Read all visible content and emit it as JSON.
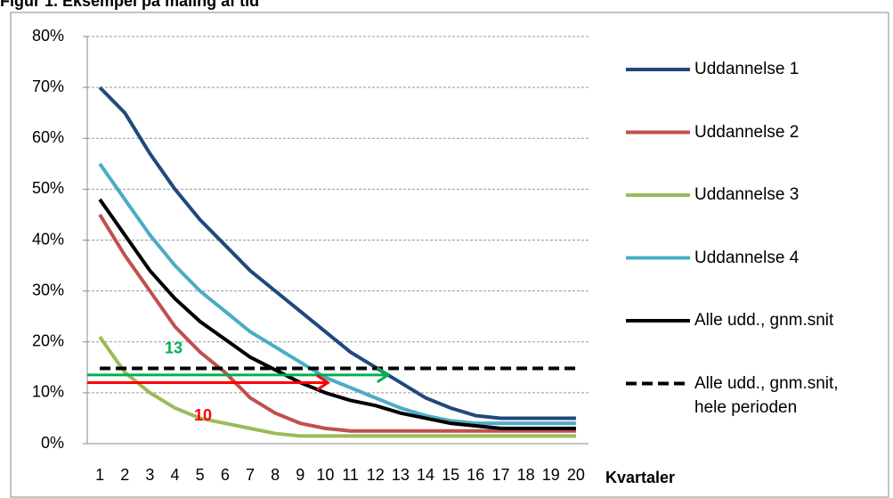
{
  "chart_data": {
    "type": "line",
    "title": "Figur 1. Eksempel på måling af tid",
    "x_label": "Kvartaler",
    "categories": [
      "1",
      "2",
      "3",
      "4",
      "5",
      "6",
      "7",
      "8",
      "9",
      "10",
      "11",
      "12",
      "13",
      "14",
      "15",
      "16",
      "17",
      "18",
      "19",
      "20"
    ],
    "series": [
      {
        "name": "Uddannelse 1",
        "color": "#1f497d",
        "dashed": false,
        "values": [
          70,
          65,
          57,
          50,
          44,
          39,
          34,
          30,
          26,
          22,
          18,
          15,
          12,
          9,
          7,
          5.5,
          5,
          5,
          5,
          5
        ]
      },
      {
        "name": "Uddannelse 2",
        "color": "#c0504d",
        "dashed": false,
        "values": [
          45,
          37,
          30,
          23,
          18,
          14,
          9,
          6,
          4,
          3,
          2.5,
          2.5,
          2.5,
          2.5,
          2.5,
          2.5,
          2.5,
          2.5,
          2.5,
          2.5
        ]
      },
      {
        "name": "Uddannelse 3",
        "color": "#9bbb59",
        "dashed": false,
        "values": [
          21,
          14,
          10,
          7,
          5,
          4,
          3,
          2,
          1.5,
          1.5,
          1.5,
          1.5,
          1.5,
          1.5,
          1.5,
          1.5,
          1.5,
          1.5,
          1.5,
          1.5
        ]
      },
      {
        "name": "Uddannelse 4",
        "color": "#4bacc6",
        "dashed": false,
        "values": [
          55,
          48,
          41,
          35,
          30,
          26,
          22,
          19,
          16,
          13,
          11,
          9,
          7,
          5.5,
          4.5,
          4,
          4,
          4,
          4,
          4
        ]
      },
      {
        "name": "Alle udd., gnm.snit",
        "color": "#000000",
        "dashed": false,
        "values": [
          48,
          41,
          34,
          28.5,
          24,
          20.5,
          17,
          14.5,
          12,
          10,
          8.5,
          7.5,
          6,
          5,
          4,
          3.5,
          3,
          3,
          3,
          3
        ]
      },
      {
        "name": "Alle udd., gnm.snit, hele perioden",
        "color": "#000000",
        "dashed": true,
        "values": [
          14.8,
          14.8,
          14.8,
          14.8,
          14.8,
          14.8,
          14.8,
          14.8,
          14.8,
          14.8,
          14.8,
          14.8,
          14.8,
          14.8,
          14.8,
          14.8,
          14.8,
          14.8,
          14.8,
          14.8
        ]
      }
    ],
    "annotations": [
      {
        "text": "13",
        "color": "#00b050",
        "y": 13.5,
        "x_end": 12.5
      },
      {
        "text": "10",
        "color": "#ff0000",
        "y": 12,
        "x_end": 10.1
      }
    ],
    "ylim": [
      0,
      80
    ],
    "yticks": [
      {
        "value": 0,
        "label": "0%"
      },
      {
        "value": 10,
        "label": "10%"
      },
      {
        "value": 20,
        "label": "20%"
      },
      {
        "value": 30,
        "label": "30%"
      },
      {
        "value": 40,
        "label": "40%"
      },
      {
        "value": 50,
        "label": "50%"
      },
      {
        "value": 60,
        "label": "60%"
      },
      {
        "value": 70,
        "label": "70%"
      },
      {
        "value": 80,
        "label": "80%"
      }
    ],
    "grid": true
  }
}
